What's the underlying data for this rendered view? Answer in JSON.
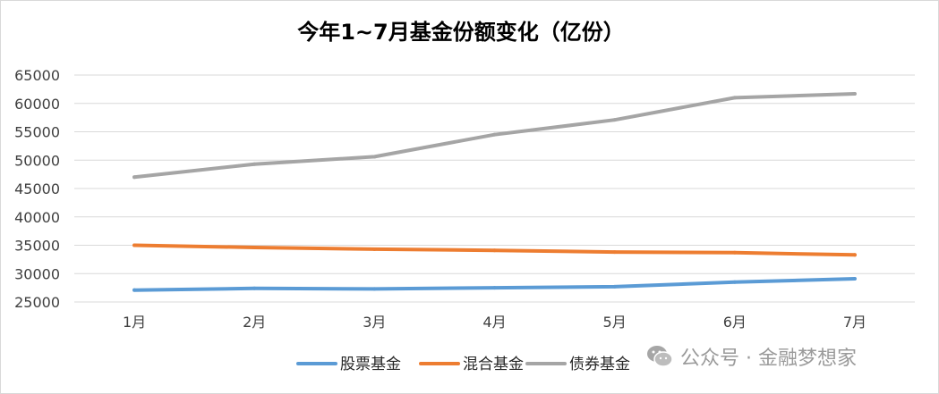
{
  "chart_data": {
    "type": "line",
    "title": "今年1~7月基金份额变化（亿份）",
    "categories": [
      "1月",
      "2月",
      "3月",
      "4月",
      "5月",
      "6月",
      "7月"
    ],
    "ylim": [
      25000,
      65000
    ],
    "yticks": [
      25000,
      30000,
      35000,
      40000,
      45000,
      50000,
      55000,
      60000,
      65000
    ],
    "grid": true,
    "legend_position": "bottom",
    "series": [
      {
        "name": "股票基金",
        "color": "#5b9bd5",
        "values": [
          27100,
          27400,
          27300,
          27500,
          27700,
          28500,
          29100
        ]
      },
      {
        "name": "混合基金",
        "color": "#ed7d31",
        "values": [
          35000,
          34600,
          34300,
          34100,
          33800,
          33700,
          33300
        ]
      },
      {
        "name": "债券基金",
        "color": "#a5a5a5",
        "values": [
          47000,
          49300,
          50600,
          54500,
          57100,
          61000,
          61700
        ]
      }
    ]
  },
  "watermark": {
    "icon": "wechat-icon",
    "text": "公众号 · 金融梦想家"
  }
}
